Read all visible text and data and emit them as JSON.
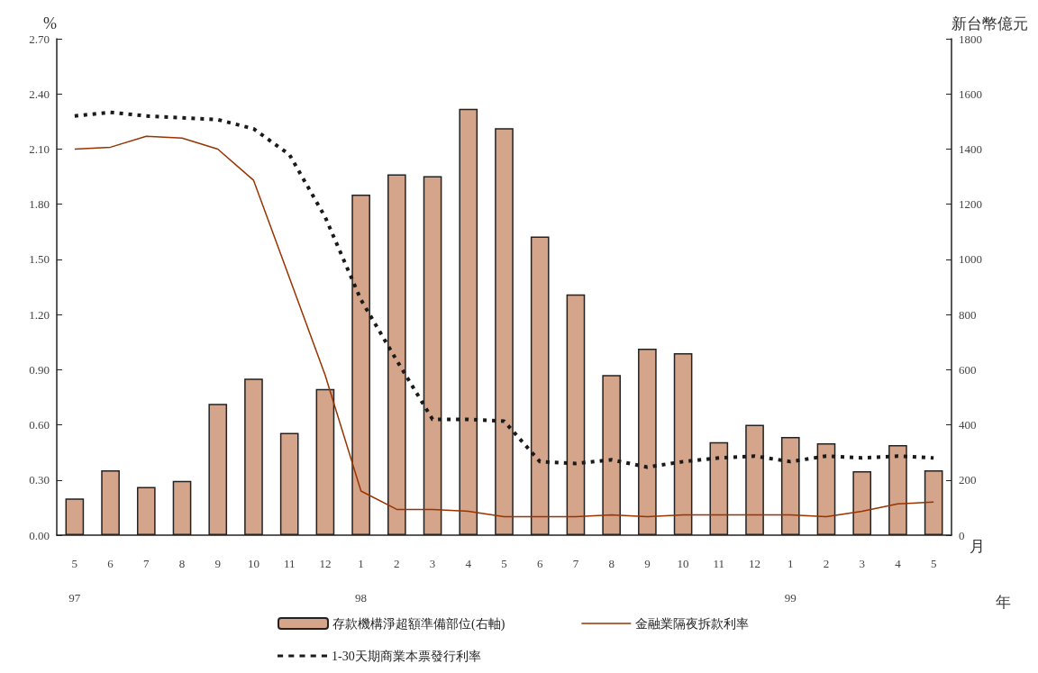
{
  "chart_data": {
    "type": "bar",
    "categories": [
      "5\n97",
      "6",
      "7",
      "8",
      "9",
      "10",
      "11",
      "12",
      "1\n98",
      "2",
      "3",
      "4",
      "5",
      "6",
      "7",
      "8",
      "9",
      "10",
      "11",
      "12",
      "1\n99",
      "2",
      "3",
      "4",
      "5"
    ],
    "xlabel": "月",
    "annotations": [
      "年"
    ],
    "ylabel": "%",
    "y2label": "新台幣億元",
    "series": [
      {
        "name": "存款機構淨超額準備部位(右軸)",
        "axis": "y2",
        "color": "#d4a58a",
        "values": [
          133,
          235,
          175,
          197,
          476,
          568,
          371,
          530,
          1235,
          1308,
          1302,
          1546,
          1476,
          1083,
          873,
          581,
          676,
          660,
          337,
          400,
          356,
          333,
          232,
          327,
          235
        ]
      },
      {
        "name": "金融業隔夜拆款利率",
        "type": "line",
        "color": "#993300",
        "line_style": "solid",
        "values": [
          2.1,
          2.11,
          2.17,
          2.16,
          2.1,
          1.93,
          1.4,
          0.87,
          0.24,
          0.14,
          0.14,
          0.13,
          0.1,
          0.1,
          0.1,
          0.11,
          0.1,
          0.11,
          0.11,
          0.11,
          0.11,
          0.1,
          0.13,
          0.17,
          0.18
        ]
      },
      {
        "name": "1-30天期商業本票發行利率",
        "type": "line",
        "color": "#1a1a1a",
        "line_style": "dashed",
        "values": [
          2.28,
          2.3,
          2.28,
          2.27,
          2.26,
          2.21,
          2.07,
          1.73,
          1.28,
          0.95,
          0.63,
          0.63,
          0.62,
          0.4,
          0.39,
          0.41,
          0.37,
          0.4,
          0.42,
          0.43,
          0.4,
          0.43,
          0.42,
          0.43,
          0.42
        ]
      }
    ],
    "ylim": [
      0,
      2.7
    ],
    "yticks": [
      {
        "value": 0,
        "label": "0.00"
      },
      {
        "value": 0.3,
        "label": "0.30"
      },
      {
        "value": 0.6,
        "label": "0.60"
      },
      {
        "value": 0.9,
        "label": "0.90"
      },
      {
        "value": 1.2,
        "label": "1.20"
      },
      {
        "value": 1.5,
        "label": "1.50"
      },
      {
        "value": 1.8,
        "label": "1.80"
      },
      {
        "value": 2.1,
        "label": "2.10"
      },
      {
        "value": 2.4,
        "label": "2.40"
      },
      {
        "value": 2.7,
        "label": "2.70"
      }
    ],
    "y2lim": [
      0,
      1800
    ],
    "y2ticks": [
      0,
      200,
      400,
      600,
      800,
      1000,
      1200,
      1400,
      1600,
      1800
    ],
    "grid": false,
    "legend": "bottom",
    "marker": "none"
  }
}
